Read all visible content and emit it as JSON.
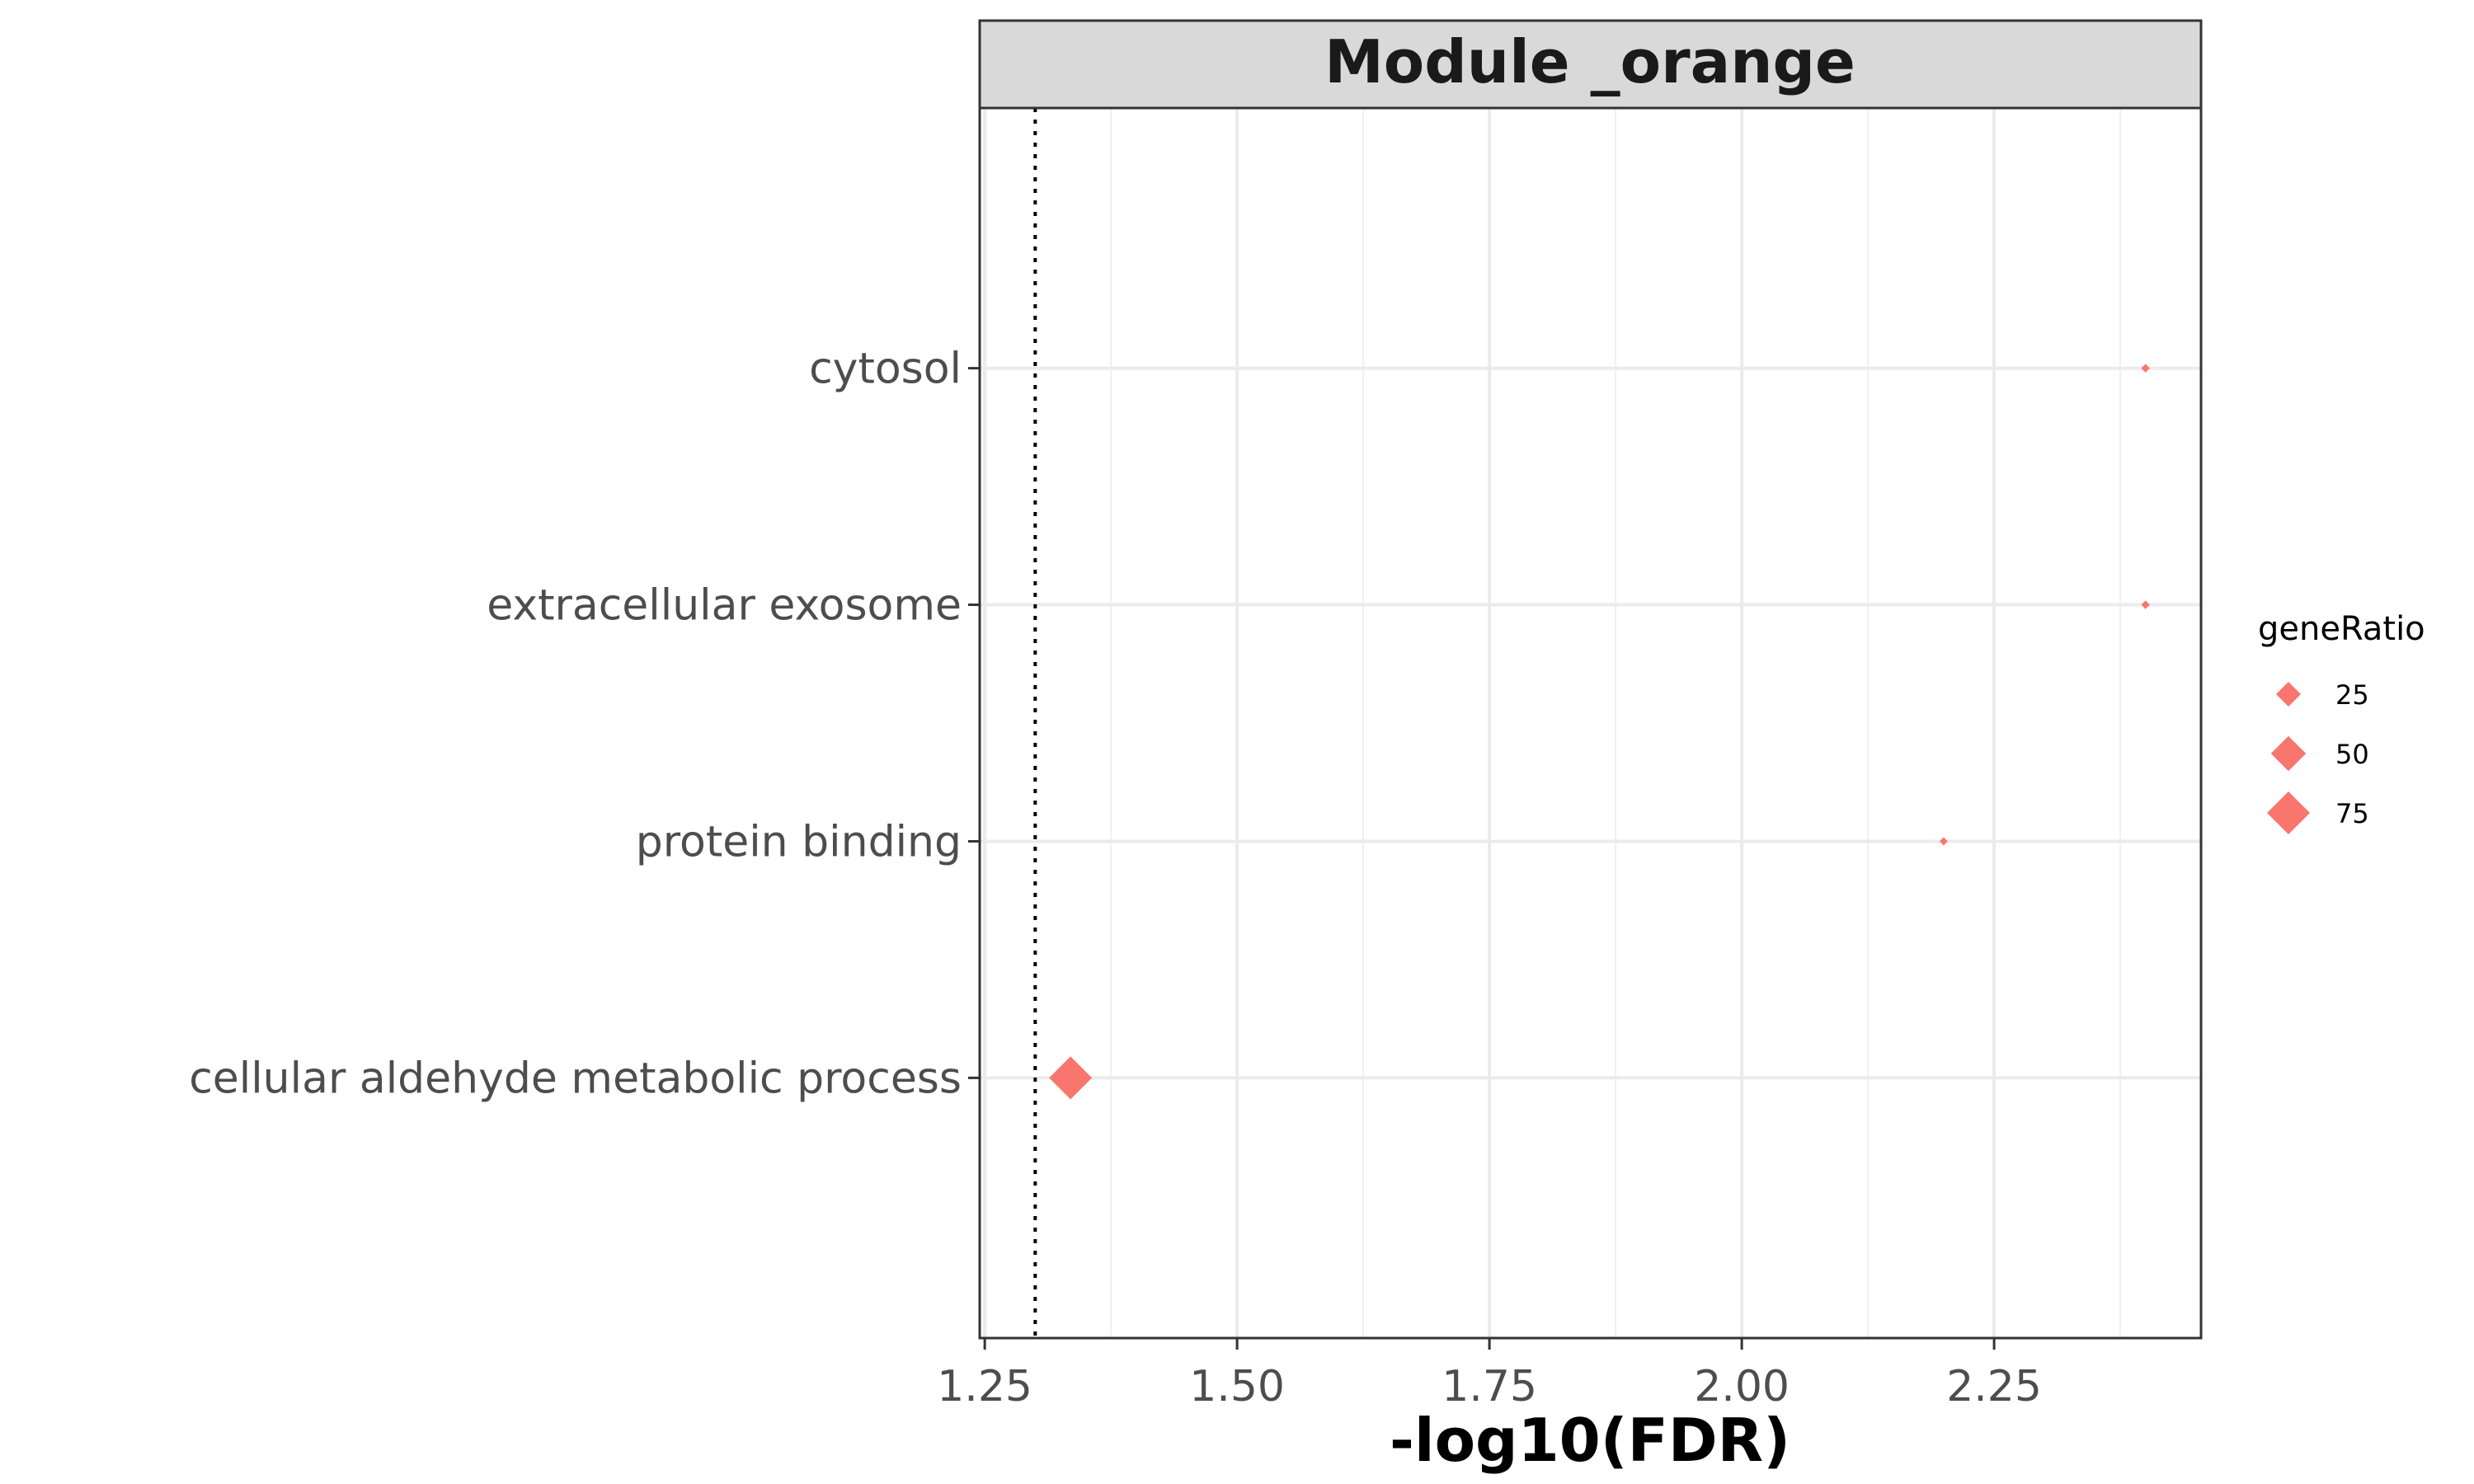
{
  "chart_data": {
    "type": "scatter",
    "facet_title": "Module _orange",
    "xlabel": "-log10(FDR)",
    "ylabel": "",
    "xlim": [
      1.245,
      2.455
    ],
    "x_ticks": [
      1.25,
      1.5,
      1.75,
      2.0,
      2.25
    ],
    "x_tick_labels": [
      "1.25",
      "1.50",
      "1.75",
      "2.00",
      "2.25"
    ],
    "reference_line_x": 1.3,
    "categories": [
      "cytosol",
      "extracellular exosome",
      "protein binding",
      "cellular aldehyde metabolic process"
    ],
    "points": [
      {
        "term": "cytosol",
        "x": 2.4,
        "geneRatio": 3
      },
      {
        "term": "extracellular exosome",
        "x": 2.4,
        "geneRatio": 3
      },
      {
        "term": "protein binding",
        "x": 2.2,
        "geneRatio": 1
      },
      {
        "term": "cellular aldehyde metabolic process",
        "x": 1.335,
        "geneRatio": 75
      }
    ],
    "marker": "diamond",
    "color": "#F8766D",
    "grid": true,
    "legend": {
      "title": "geneRatio",
      "position": "right",
      "entries": [
        {
          "label": "25",
          "value": 25
        },
        {
          "label": "50",
          "value": 50
        },
        {
          "label": "75",
          "value": 75
        }
      ]
    }
  }
}
